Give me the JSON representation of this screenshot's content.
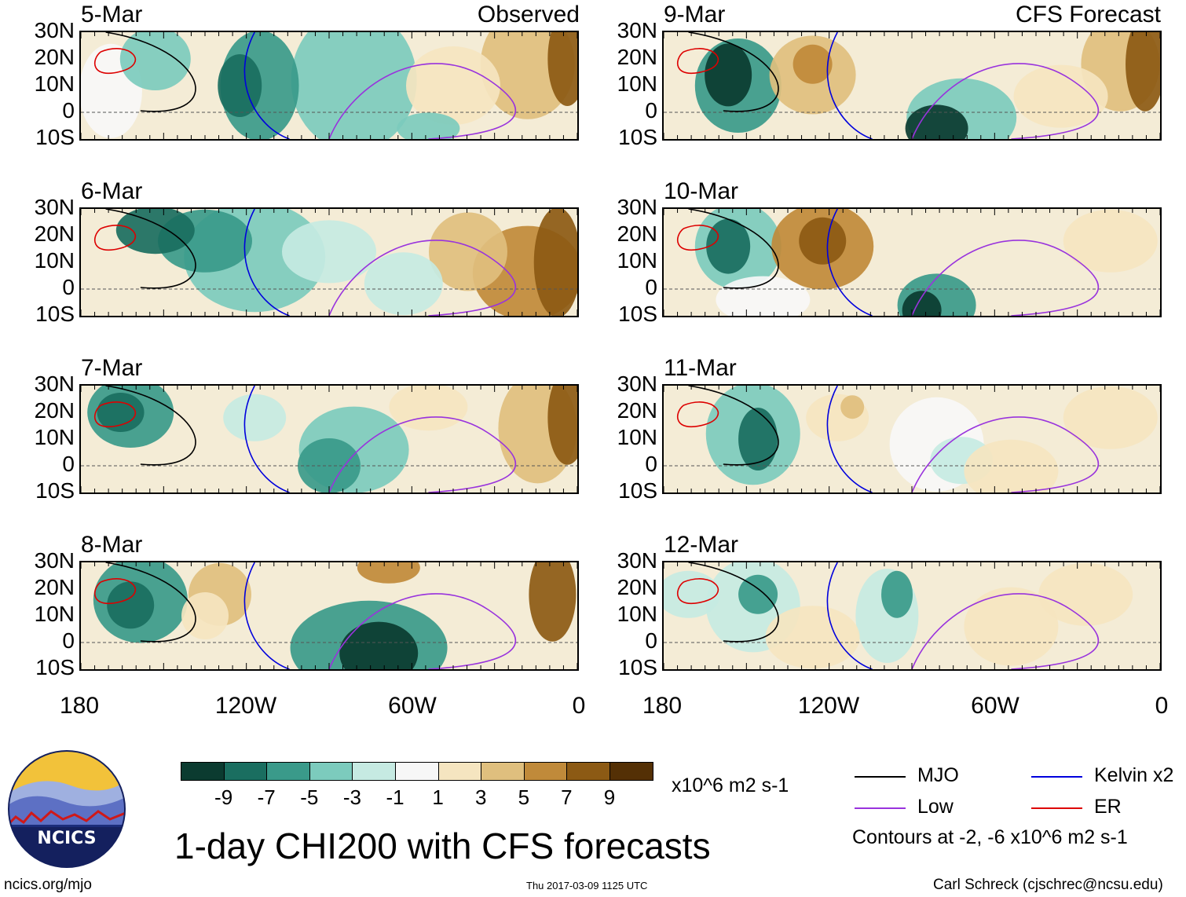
{
  "header": {
    "left_title": "Observed",
    "right_title": "CFS Forecast"
  },
  "panels": [
    {
      "date": "5-Mar",
      "column": "observed",
      "row": 0
    },
    {
      "date": "6-Mar",
      "column": "observed",
      "row": 1
    },
    {
      "date": "7-Mar",
      "column": "observed",
      "row": 2
    },
    {
      "date": "8-Mar",
      "column": "observed",
      "row": 3
    },
    {
      "date": "9-Mar",
      "column": "forecast",
      "row": 0
    },
    {
      "date": "10-Mar",
      "column": "forecast",
      "row": 1
    },
    {
      "date": "11-Mar",
      "column": "forecast",
      "row": 2
    },
    {
      "date": "12-Mar",
      "column": "forecast",
      "row": 3
    }
  ],
  "chart_data": {
    "type": "heatmap",
    "title": "1-day CHI200 with CFS forecasts",
    "units": "x10^6 m2 s-1",
    "latitude_ticks": [
      "30N",
      "20N",
      "10N",
      "0",
      "10S"
    ],
    "longitude_ticks": [
      "180",
      "120W",
      "60W",
      "0"
    ],
    "xlim": [
      -180,
      0
    ],
    "ylim": [
      -10,
      30
    ],
    "colorbar": {
      "labels": [
        "-9",
        "-7",
        "-5",
        "-3",
        "-1",
        "1",
        "3",
        "5",
        "7",
        "9"
      ],
      "colors": [
        "#0b3b30",
        "#1a6e60",
        "#3a9a8a",
        "#7ccbbd",
        "#c6eae2",
        "#f7f7f7",
        "#f5e5c0",
        "#dfbf7e",
        "#c08a3a",
        "#8c5a14",
        "#543005"
      ]
    },
    "contour_legend": [
      {
        "name": "MJO",
        "color": "#000000"
      },
      {
        "name": "Kelvin x2",
        "color": "#0000dd"
      },
      {
        "name": "Low",
        "color": "#9933dd"
      },
      {
        "name": "ER",
        "color": "#dd0000"
      }
    ],
    "contour_note": "Contours at -2, -6 x10^6 m2 s-1"
  },
  "footer": {
    "org": "NCICS",
    "url": "ncics.org/mjo",
    "timestamp": "Thu 2017-03-09 1125 UTC",
    "author": "Carl Schreck (cjschrec@ncsu.edu)"
  }
}
